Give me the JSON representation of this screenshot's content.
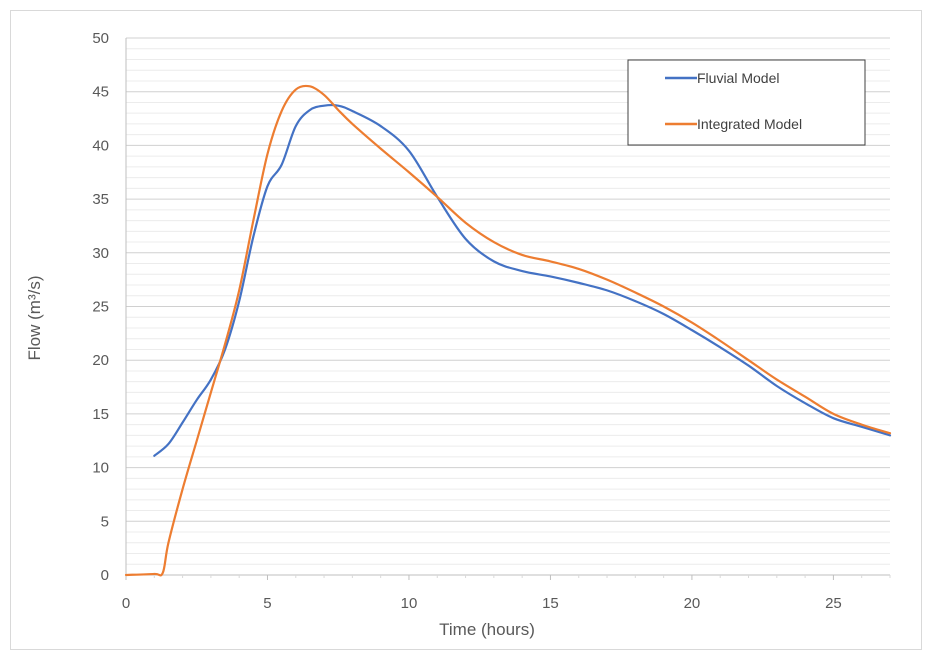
{
  "chart_data": {
    "type": "line",
    "title": "",
    "xlabel": "Time (hours)",
    "ylabel": "Flow (m³/s)",
    "xlim": [
      0,
      27
    ],
    "ylim": [
      0,
      50
    ],
    "xticks": [
      0,
      5,
      10,
      15,
      20,
      25
    ],
    "yticks": [
      0,
      5,
      10,
      15,
      20,
      25,
      30,
      35,
      40,
      45,
      50
    ],
    "xtick_labels": [
      "0",
      "5",
      "10",
      "15",
      "20",
      "25"
    ],
    "ytick_labels": [
      "0",
      "5",
      "10",
      "15",
      "20",
      "25",
      "30",
      "35",
      "40",
      "45",
      "50"
    ],
    "grid": true,
    "legend_position": "top-right",
    "series": [
      {
        "name": "Fluvial Model",
        "color": "#4472C4",
        "x": [
          1,
          1.5,
          2,
          2.5,
          3,
          3.5,
          4,
          4.5,
          5,
          5.5,
          6,
          6.5,
          7,
          7.5,
          8,
          9,
          10,
          11,
          12,
          13,
          14,
          15,
          16,
          17,
          18,
          19,
          20,
          21,
          22,
          23,
          24,
          25,
          26,
          27
        ],
        "y": [
          11.1,
          12.2,
          14.2,
          16.3,
          18.2,
          21,
          25.5,
          31.5,
          36.2,
          38.2,
          41.8,
          43.3,
          43.7,
          43.7,
          43.2,
          41.8,
          39.5,
          35.2,
          31.3,
          29.2,
          28.3,
          27.8,
          27.2,
          26.5,
          25.5,
          24.3,
          22.8,
          21.2,
          19.5,
          17.6,
          16,
          14.6,
          13.8,
          13
        ]
      },
      {
        "name": "Integrated Model",
        "color": "#ED7D31",
        "x": [
          0,
          1,
          1.3,
          1.5,
          2,
          2.5,
          3,
          3.5,
          4,
          4.5,
          5,
          5.5,
          6,
          6.5,
          7,
          7.5,
          8,
          9,
          10,
          11,
          12,
          13,
          14,
          15,
          16,
          17,
          18,
          19,
          20,
          21,
          22,
          23,
          24,
          25,
          26,
          27
        ],
        "y": [
          0,
          0.1,
          0.2,
          3,
          8,
          12.5,
          17,
          21.5,
          26.5,
          33,
          39.2,
          43.2,
          45.2,
          45.5,
          44.7,
          43.3,
          42,
          39.7,
          37.5,
          35.2,
          32.8,
          31,
          29.8,
          29.2,
          28.5,
          27.5,
          26.3,
          25,
          23.5,
          21.8,
          20,
          18.2,
          16.6,
          15,
          14,
          13.2
        ]
      }
    ]
  }
}
